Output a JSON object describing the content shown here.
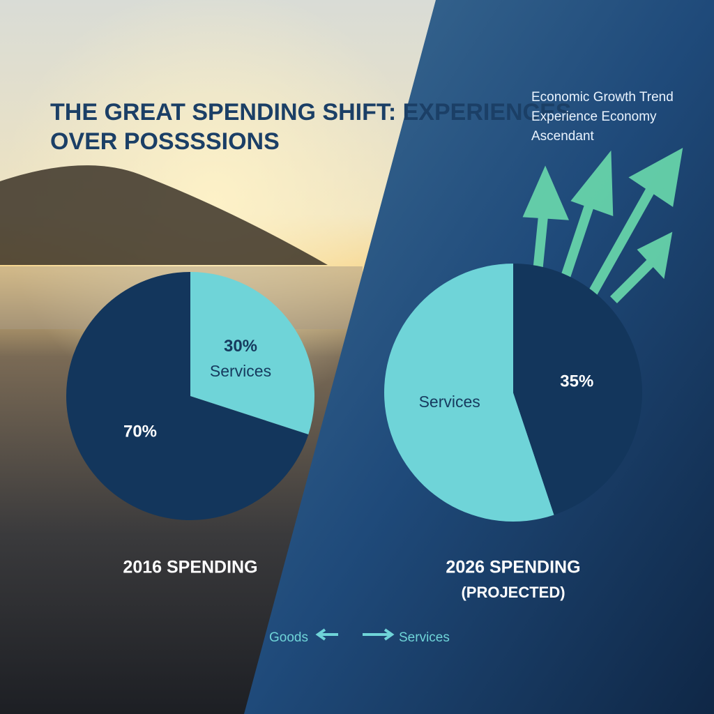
{
  "title": [
    "THE GREAT SPENDING SHIFT: EXPERIENCES",
    "OVER POSSSSIONS"
  ],
  "annotation": [
    "Economic Growth Trend",
    "Experience Economy",
    "Ascendant"
  ],
  "legend": [
    "Goods",
    "Services"
  ],
  "chart_data": [
    {
      "type": "pie",
      "title": "2016 SPENDING",
      "categories": [
        null,
        "Services"
      ],
      "values": [
        70,
        30
      ],
      "value_labels": [
        "70%",
        "30%"
      ],
      "colors": [
        "#13365c",
        "#6fd4d8"
      ]
    },
    {
      "type": "pie",
      "title": "2026 SPENDING",
      "subtitle": "(PROJECTED)",
      "categories": [
        "Services",
        null
      ],
      "values": [
        43,
        35
      ],
      "value_labels": [
        null,
        "35%"
      ],
      "colors": [
        "#6fd4d8",
        "#13365c"
      ]
    }
  ]
}
